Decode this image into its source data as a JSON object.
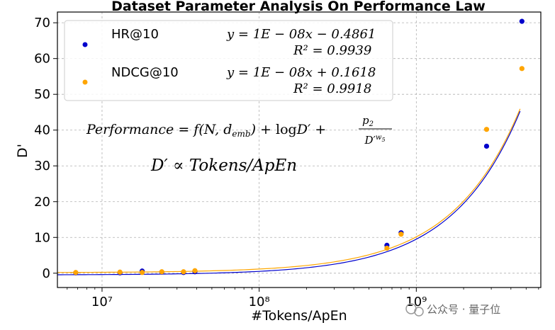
{
  "chart_data": {
    "type": "scatter",
    "title": "Dataset Parameter Analysis On Performance Law",
    "xlabel": "#Tokens/ApEn",
    "ylabel": "D'",
    "xscale": "log",
    "xlim": [
      5200000,
      6200000000
    ],
    "ylim": [
      -4,
      73
    ],
    "xticks": [
      10000000,
      100000000,
      1000000000
    ],
    "xtick_labels": [
      "10⁷",
      "10⁸",
      "10⁹"
    ],
    "yticks": [
      0,
      10,
      20,
      30,
      40,
      50,
      60,
      70
    ],
    "grid": true,
    "legend_position": "top-left",
    "series": [
      {
        "name": "HR@10",
        "color": "#0000cc",
        "fit": {
          "slope": 1e-08,
          "intercept": -0.4861
        },
        "equation": "y = 1E − 08x − 0.4861",
        "r2_text": "R² = 0.9939",
        "x": [
          6800000,
          13000000,
          18000000,
          24000000,
          33000000,
          39000000,
          650000000,
          800000000,
          2800000000,
          4700000000
        ],
        "y": [
          0.1,
          0.1,
          0.6,
          0.3,
          0.2,
          0.4,
          7.8,
          11.3,
          35.5,
          70.4
        ]
      },
      {
        "name": "NDCG@10",
        "color": "#ffa500",
        "fit": {
          "slope": 1e-08,
          "intercept": 0.1618
        },
        "equation": "y = 1E − 08x + 0.1618",
        "r2_text": "R² = 0.9918",
        "x": [
          6800000,
          13000000,
          18000000,
          24000000,
          33000000,
          39000000,
          650000000,
          800000000,
          2800000000,
          4700000000
        ],
        "y": [
          0.2,
          0.3,
          0.2,
          0.4,
          0.4,
          0.7,
          7.0,
          10.9,
          40.2,
          57.2
        ]
      }
    ],
    "annotations": {
      "formula_1": "Performance = f(N, d_emb) + logD' + p2 / D'^w5",
      "formula_2": "D' ∝ Tokens/ApEn"
    }
  },
  "watermark": "公众号 · 量子位"
}
